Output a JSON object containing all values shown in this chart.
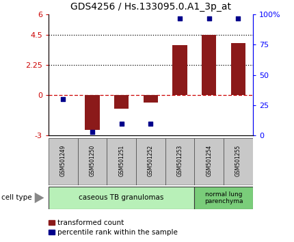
{
  "title": "GDS4256 / Hs.133095.0.A1_3p_at",
  "samples": [
    "GSM501249",
    "GSM501250",
    "GSM501251",
    "GSM501252",
    "GSM501253",
    "GSM501254",
    "GSM501255"
  ],
  "transformed_count": [
    0.02,
    -2.6,
    -1.0,
    -0.55,
    3.7,
    4.5,
    3.9
  ],
  "percentile_rank": [
    30,
    3,
    10,
    10,
    97,
    97,
    97
  ],
  "left_ylim": [
    -3,
    6
  ],
  "right_ylim": [
    0,
    100
  ],
  "left_yticks": [
    -3,
    0,
    2.25,
    4.5,
    6
  ],
  "left_yticklabels": [
    "-3",
    "0",
    "2.25",
    "4.5",
    "6"
  ],
  "right_yticks": [
    0,
    25,
    50,
    75,
    100
  ],
  "right_yticklabels": [
    "0",
    "25",
    "50",
    "75",
    "100%"
  ],
  "bar_color": "#8B1A1A",
  "dot_color": "#00008B",
  "cell_type_label": "cell type",
  "legend_bar_label": "transformed count",
  "legend_dot_label": "percentile rank within the sample",
  "bg_color": "#ffffff",
  "label_bg_color": "#c8c8c8",
  "ct1_color": "#b8f0b8",
  "ct2_color": "#7acd7a",
  "ct1_label": "caseous TB granulomas",
  "ct2_label": "normal lung\nparenchyma",
  "ct1_count": 5,
  "ct2_count": 2
}
